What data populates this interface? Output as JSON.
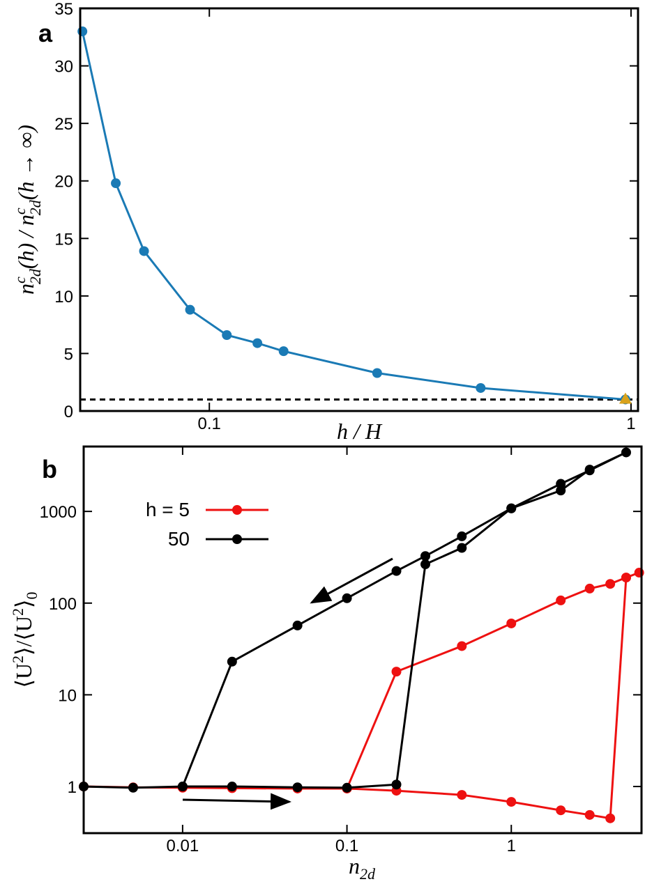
{
  "chart_data": [
    {
      "type": "line",
      "panel_label": "a",
      "xlabel": "h / H",
      "ylabel": [
        "n",
        "c",
        "2d",
        "(h) / n",
        "c",
        "2d",
        "(h → ∞)"
      ],
      "xscale": "log",
      "xlim": [
        0.0494,
        1.039
      ],
      "ylim": [
        0,
        35
      ],
      "xticks": [
        0.1,
        1
      ],
      "yticks": [
        0,
        5,
        10,
        15,
        20,
        25,
        30,
        35
      ],
      "series": [
        {
          "color": "#1a7ab5",
          "x": [
            0.05,
            0.06,
            0.07,
            0.09,
            0.11,
            0.13,
            0.15,
            0.25,
            0.44,
            0.97
          ],
          "values": [
            33,
            19.8,
            13.9,
            8.8,
            6.6,
            5.9,
            5.2,
            3.3,
            2.0,
            1.0
          ]
        }
      ],
      "points": [
        {
          "x": 0.97,
          "value": 1,
          "color": "#d9a21b",
          "shape": "triangle"
        }
      ],
      "reference_line": {
        "value": 1,
        "style": "dashed"
      }
    },
    {
      "type": "line",
      "panel_label": "b",
      "xlabel": [
        "n",
        "2d"
      ],
      "ylabel": [
        "⟨U",
        "2",
        "⟩/⟨U",
        "2",
        "⟩",
        "0"
      ],
      "xscale": "log",
      "yscale": "log",
      "xlim": [
        0.0025,
        6.2
      ],
      "ylim": [
        0.31,
        5100
      ],
      "xticks": [
        0.01,
        0.1,
        1
      ],
      "yticks": [
        1,
        10,
        100,
        1000
      ],
      "legend": "upper left",
      "series": [
        {
          "name": "h = 5",
          "color": "#ee1111",
          "x": [
            0.0025,
            0.005,
            0.01,
            0.02,
            0.05,
            0.1,
            0.2,
            0.5,
            1,
            2,
            3,
            4,
            5,
            6,
            5,
            4,
            3,
            2,
            1,
            0.5,
            0.2,
            0.1
          ],
          "values": [
            1.0,
            0.98,
            0.97,
            0.96,
            0.95,
            0.95,
            0.9,
            0.81,
            0.68,
            0.55,
            0.49,
            0.45,
            190,
            215,
            190,
            162,
            144,
            107,
            60,
            34,
            17.9,
            0.95
          ]
        },
        {
          "name": "50",
          "color": "#000000",
          "x": [
            0.0025,
            0.005,
            0.01,
            0.02,
            0.05,
            0.1,
            0.2,
            0.3,
            0.5,
            1,
            2,
            3,
            5,
            3,
            2,
            1,
            0.5,
            0.3,
            0.2,
            0.1,
            0.05,
            0.02,
            0.01
          ],
          "values": [
            1.0,
            0.97,
            1.0,
            1.0,
            0.98,
            0.97,
            1.05,
            265,
            400,
            1080,
            1690,
            2860,
            4400,
            2800,
            2000,
            1080,
            535,
            326,
            224,
            113,
            57,
            23,
            1.0
          ]
        }
      ]
    }
  ]
}
